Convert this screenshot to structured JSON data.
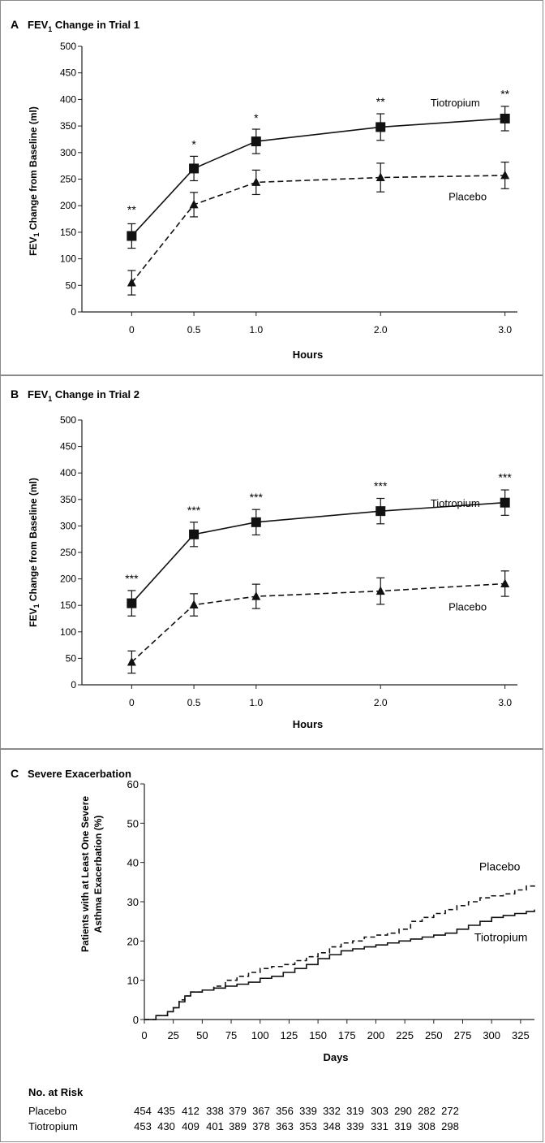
{
  "panels": [
    {
      "letter": "A",
      "title_prefix": "FEV",
      "title_sub": "1",
      "title_suffix": " Change in Trial 1",
      "ylabel_prefix": "FEV",
      "ylabel_sub": "1",
      "ylabel_suffix": " Change from Baseline (ml)"
    },
    {
      "letter": "B",
      "title_prefix": "FEV",
      "title_sub": "1",
      "title_suffix": " Change in Trial 2",
      "ylabel_prefix": "FEV",
      "ylabel_sub": "1",
      "ylabel_suffix": " Change from Baseline (ml)"
    },
    {
      "letter": "C",
      "title": "Severe Exacerbation",
      "ylabel_line1": "Patients with at Least One Severe",
      "ylabel_line2": "Asthma Exacerbation (%)"
    }
  ],
  "risk_table": {
    "heading": "No. at Risk",
    "rows": [
      {
        "label": "Placebo",
        "values": [
          "454",
          "435",
          "412",
          "338",
          "379",
          "367",
          "356",
          "339",
          "332",
          "319",
          "303",
          "290",
          "282",
          "272"
        ]
      },
      {
        "label": "Tiotropium",
        "values": [
          "453",
          "430",
          "409",
          "401",
          "389",
          "378",
          "363",
          "353",
          "348",
          "339",
          "331",
          "319",
          "308",
          "298"
        ]
      }
    ]
  },
  "chart_data": [
    {
      "type": "line",
      "xlabel": "Hours",
      "ylabel": "FEV1 Change from Baseline (ml)",
      "xlim": [
        -0.4,
        3.1
      ],
      "ylim": [
        0,
        500
      ],
      "x_ticks": [
        0,
        0.5,
        1.0,
        2.0,
        3.0
      ],
      "x_tick_labels": [
        "0",
        "0.5",
        "1.0",
        "2.0",
        "3.0"
      ],
      "y_ticks": [
        0,
        50,
        100,
        150,
        200,
        250,
        300,
        350,
        400,
        450,
        500
      ],
      "series": [
        {
          "name": "Tiotropium",
          "marker": "square",
          "dash": "solid",
          "x": [
            0,
            0.5,
            1.0,
            2.0,
            3.0
          ],
          "y": [
            143,
            270,
            321,
            348,
            364
          ],
          "err": [
            23,
            23,
            23,
            25,
            23
          ]
        },
        {
          "name": "Placebo",
          "marker": "triangle",
          "dash": "dashed",
          "x": [
            0,
            0.5,
            1.0,
            2.0,
            3.0
          ],
          "y": [
            55,
            202,
            244,
            253,
            257
          ],
          "err": [
            23,
            23,
            23,
            27,
            25
          ]
        }
      ],
      "annotations": [
        {
          "x": 0,
          "y": 185,
          "text": "**"
        },
        {
          "x": 0.5,
          "y": 308,
          "text": "*"
        },
        {
          "x": 1.0,
          "y": 358,
          "text": "*"
        },
        {
          "x": 2.0,
          "y": 388,
          "text": "**"
        },
        {
          "x": 3.0,
          "y": 403,
          "text": "**"
        }
      ],
      "series_labels": [
        {
          "series": 0,
          "x": 2.6,
          "y": 387
        },
        {
          "series": 1,
          "x": 2.7,
          "y": 210
        }
      ]
    },
    {
      "type": "line",
      "xlabel": "Hours",
      "ylabel": "FEV1 Change from Baseline (ml)",
      "xlim": [
        -0.4,
        3.1
      ],
      "ylim": [
        0,
        500
      ],
      "x_ticks": [
        0,
        0.5,
        1.0,
        2.0,
        3.0
      ],
      "x_tick_labels": [
        "0",
        "0.5",
        "1.0",
        "2.0",
        "3.0"
      ],
      "y_ticks": [
        0,
        50,
        100,
        150,
        200,
        250,
        300,
        350,
        400,
        450,
        500
      ],
      "series": [
        {
          "name": "Tiotropium",
          "marker": "square",
          "dash": "solid",
          "x": [
            0,
            0.5,
            1.0,
            2.0,
            3.0
          ],
          "y": [
            154,
            284,
            307,
            328,
            344
          ],
          "err": [
            24,
            23,
            24,
            24,
            24
          ]
        },
        {
          "name": "Placebo",
          "marker": "triangle",
          "dash": "dashed",
          "x": [
            0,
            0.5,
            1.0,
            2.0,
            3.0
          ],
          "y": [
            43,
            151,
            167,
            177,
            191
          ],
          "err": [
            21,
            21,
            23,
            25,
            24
          ]
        }
      ],
      "annotations": [
        {
          "x": 0,
          "y": 193,
          "text": "***"
        },
        {
          "x": 0.5,
          "y": 322,
          "text": "***"
        },
        {
          "x": 1.0,
          "y": 347,
          "text": "***"
        },
        {
          "x": 2.0,
          "y": 368,
          "text": "***"
        },
        {
          "x": 3.0,
          "y": 384,
          "text": "***"
        }
      ],
      "series_labels": [
        {
          "series": 0,
          "x": 2.6,
          "y": 336
        },
        {
          "series": 1,
          "x": 2.7,
          "y": 140
        }
      ]
    },
    {
      "type": "line",
      "xlabel": "Days",
      "ylabel": "Patients with at Least One Severe Asthma Exacerbation (%)",
      "xlim": [
        0,
        337
      ],
      "ylim": [
        0,
        60
      ],
      "x_ticks": [
        0,
        25,
        50,
        75,
        100,
        125,
        150,
        175,
        200,
        225,
        250,
        275,
        300,
        325
      ],
      "y_ticks": [
        0,
        10,
        20,
        30,
        40,
        50,
        60
      ],
      "series": [
        {
          "name": "Placebo",
          "dash": "dashed",
          "x": [
            0,
            10,
            20,
            25,
            30,
            35,
            40,
            50,
            60,
            70,
            80,
            90,
            100,
            110,
            120,
            130,
            140,
            150,
            160,
            170,
            180,
            190,
            200,
            210,
            220,
            230,
            240,
            250,
            260,
            270,
            280,
            290,
            300,
            310,
            320,
            330,
            337
          ],
          "y": [
            0,
            1,
            2,
            3,
            5,
            6,
            7,
            7.5,
            8.5,
            10,
            11,
            12,
            13,
            13.5,
            14,
            15,
            16,
            17,
            18.5,
            19.5,
            20,
            21,
            21.5,
            22,
            23,
            25,
            26,
            27,
            28,
            29,
            30,
            31,
            31.5,
            32,
            33,
            34,
            35
          ]
        },
        {
          "name": "Tiotropium",
          "dash": "solid",
          "x": [
            0,
            10,
            20,
            25,
            30,
            35,
            40,
            50,
            60,
            70,
            80,
            90,
            100,
            110,
            120,
            130,
            140,
            150,
            160,
            170,
            180,
            190,
            200,
            210,
            220,
            230,
            240,
            250,
            260,
            270,
            280,
            290,
            300,
            310,
            320,
            330,
            337
          ],
          "y": [
            0,
            1,
            2,
            3,
            4.5,
            6,
            7,
            7.5,
            8,
            8.5,
            9,
            9.5,
            10.5,
            11,
            12,
            13,
            14,
            15.5,
            16.5,
            17.5,
            18,
            18.5,
            19,
            19.5,
            20,
            20.5,
            21,
            21.5,
            22,
            23,
            24,
            25,
            26,
            26.5,
            27,
            27.5,
            28
          ]
        }
      ],
      "series_labels": [
        {
          "series": 0,
          "x": 307,
          "y": 38
        },
        {
          "series": 1,
          "x": 308,
          "y": 20
        }
      ]
    }
  ]
}
